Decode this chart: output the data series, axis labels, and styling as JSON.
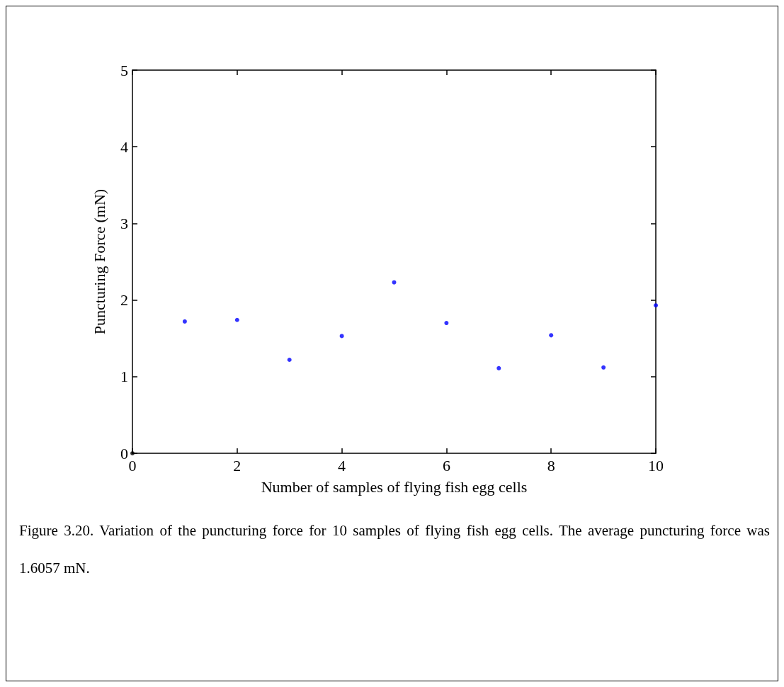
{
  "chart_data": {
    "type": "scatter",
    "xlabel": "Number of samples of flying fish egg cells",
    "ylabel": "Puncturing Force (mN)",
    "annotations": [
      "Figure 3.20. Variation of the puncturing force for 10 samples of flying fish egg cells. The average puncturing force was 1.6057 mN."
    ],
    "series": [
      {
        "color": "#0000ff",
        "x": [
          1,
          2,
          3,
          4,
          5,
          6,
          7,
          8,
          9,
          10
        ],
        "values": [
          1.72,
          1.74,
          1.22,
          1.53,
          2.23,
          1.7,
          1.11,
          1.54,
          1.12,
          1.93
        ]
      },
      {
        "color": "#000000",
        "x": [
          0
        ],
        "values": [
          0
        ]
      }
    ],
    "xlim": [
      0,
      10
    ],
    "xticks": [
      0,
      2,
      4,
      6,
      8,
      10
    ],
    "ylim": [
      0,
      5
    ],
    "yticks": [
      0,
      1,
      2,
      3,
      4,
      5
    ],
    "grid": false,
    "marker": "circle"
  }
}
